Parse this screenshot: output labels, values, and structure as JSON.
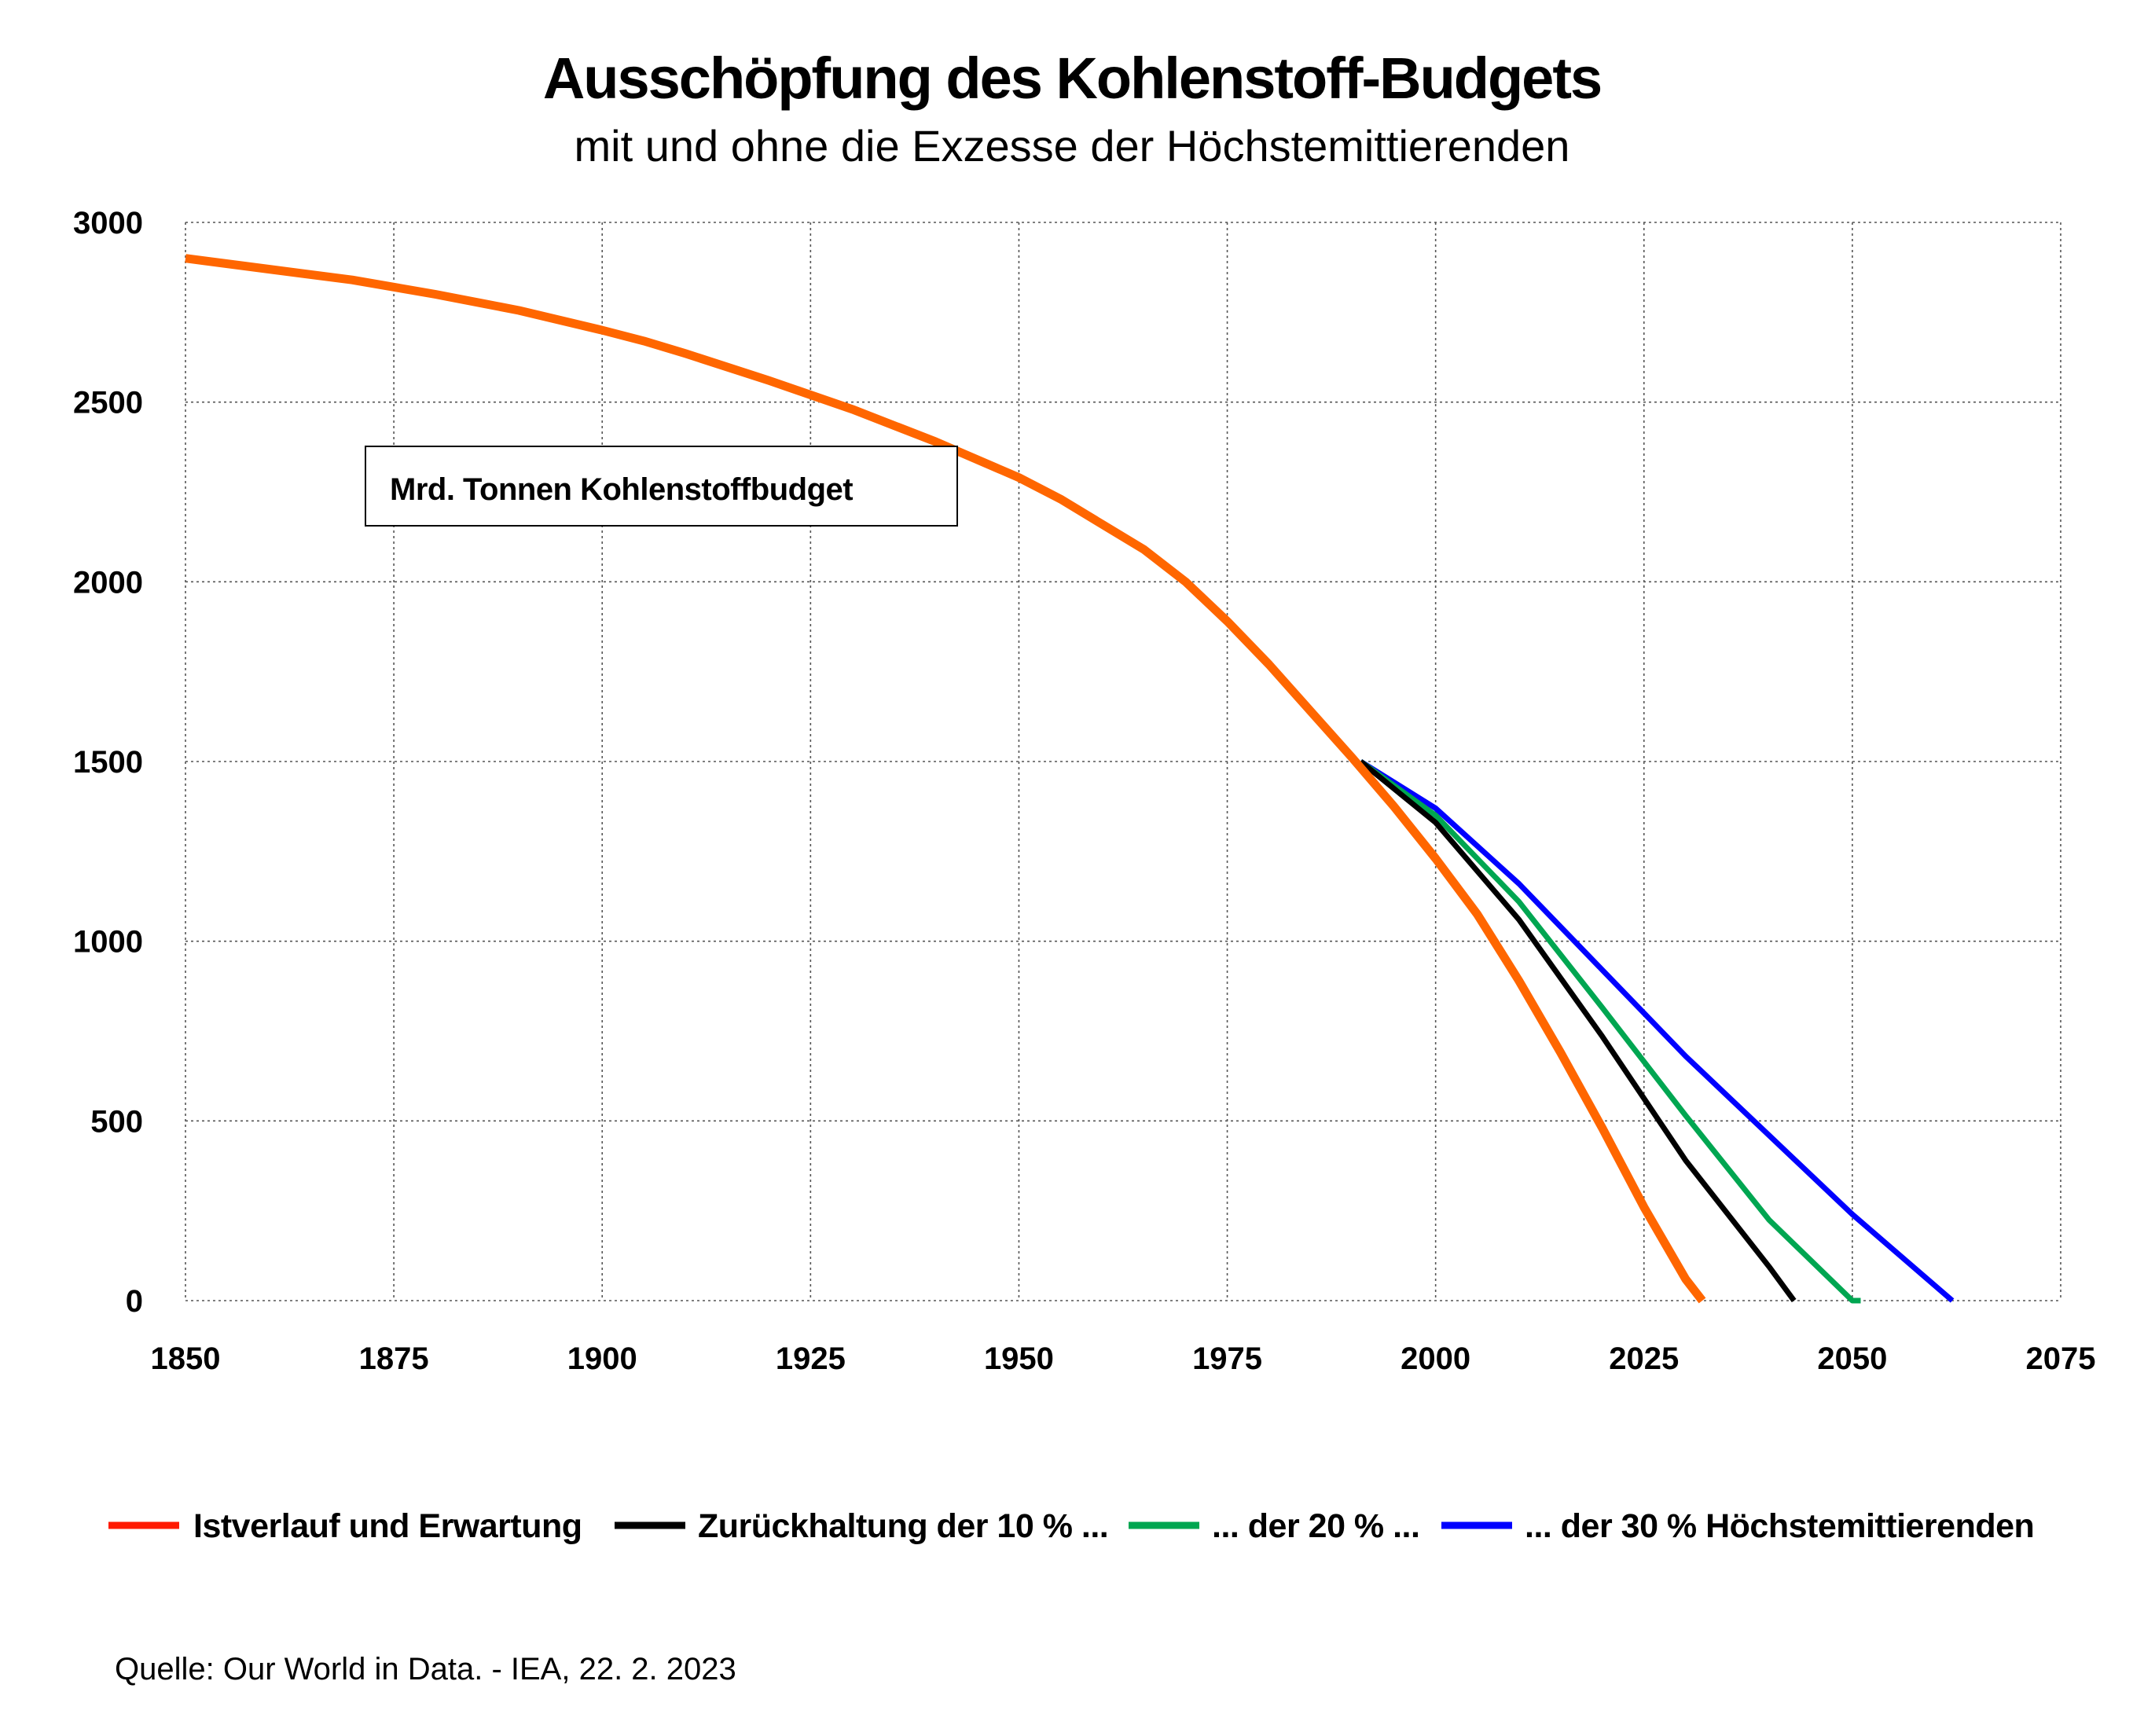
{
  "chart_data": {
    "type": "line",
    "title": "Ausschöpfung des Kohlenstoff-Budgets",
    "subtitle": "mit und ohne die Exzesse der Höchstemittierenden",
    "annotation": "Mrd. Tonnen Kohlenstoffbudget",
    "source": "Quelle: Our World in Data. - IEA, 22. 2. 2023",
    "xlim": [
      1850,
      2075
    ],
    "ylim": [
      0,
      3000
    ],
    "x_ticks": [
      "1850",
      "1875",
      "1900",
      "1925",
      "1950",
      "1975",
      "2000",
      "2025",
      "2050",
      "2075"
    ],
    "y_ticks": [
      "0",
      "500",
      "1000",
      "1500",
      "2000",
      "2500",
      "3000"
    ],
    "grid": true,
    "legend_position": "bottom",
    "series": [
      {
        "name": "Istverlauf und Erwartung",
        "color": "#ff6600",
        "legend_color": "#ff1a00",
        "x": [
          1850,
          1860,
          1870,
          1880,
          1890,
          1900,
          1905,
          1910,
          1920,
          1930,
          1940,
          1950,
          1955,
          1960,
          1965,
          1970,
          1975,
          1980,
          1985,
          1990,
          1995,
          2000,
          2005,
          2010,
          2015,
          2020,
          2025,
          2030,
          2032
        ],
        "y": [
          2900,
          2870,
          2840,
          2800,
          2755,
          2700,
          2670,
          2635,
          2560,
          2480,
          2390,
          2290,
          2230,
          2160,
          2090,
          2000,
          1890,
          1770,
          1640,
          1510,
          1375,
          1230,
          1075,
          890,
          690,
          480,
          260,
          60,
          0
        ]
      },
      {
        "name": "Zurückhaltung der 10 % ...",
        "color": "#000000",
        "x": [
          1991,
          2000,
          2010,
          2020,
          2030,
          2040,
          2043
        ],
        "y": [
          1500,
          1330,
          1060,
          735,
          390,
          95,
          0
        ]
      },
      {
        "name": "... der 20 % ...",
        "color": "#00a651",
        "x": [
          1991,
          2000,
          2010,
          2020,
          2030,
          2040,
          2050,
          2051
        ],
        "y": [
          1500,
          1350,
          1110,
          815,
          515,
          225,
          0,
          0
        ]
      },
      {
        "name": "... der 30 % Höchstemittierenden",
        "color": "#0000ff",
        "x": [
          1991,
          2000,
          2010,
          2020,
          2030,
          2040,
          2050,
          2062
        ],
        "y": [
          1500,
          1370,
          1160,
          920,
          680,
          460,
          240,
          0
        ]
      }
    ]
  }
}
